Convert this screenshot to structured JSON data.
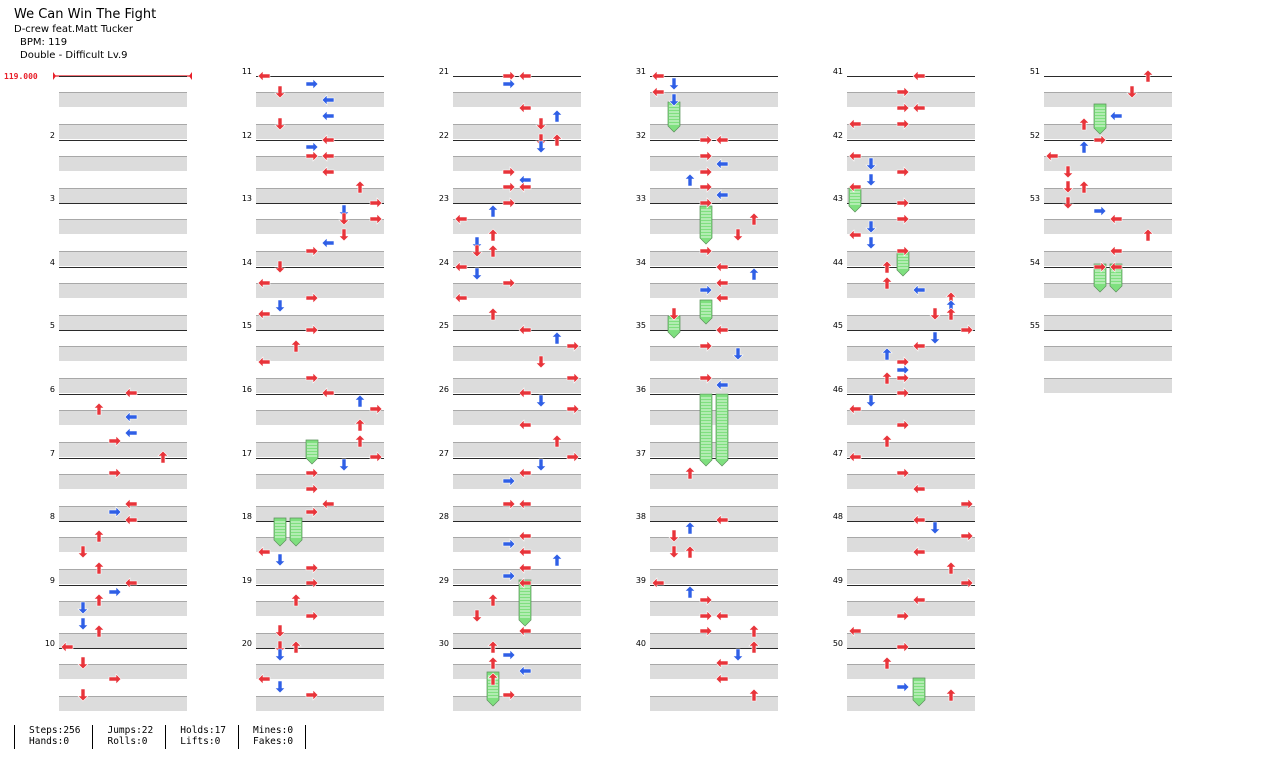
{
  "song": {
    "title": "We Can Win The Fight",
    "artist": "D-crew feat.Matt Tucker",
    "bpm_label": "BPM: 119",
    "difficulty": "Double - Difficult  Lv.9"
  },
  "bpm_marker": "119.000",
  "columns": [
    {
      "measures": [
        "",
        "2",
        "3",
        "4",
        "5",
        "6",
        "7",
        "8",
        "9",
        "10"
      ]
    },
    {
      "measures": [
        "11",
        "12",
        "13",
        "14",
        "15",
        "16",
        "17",
        "18",
        "19",
        "20"
      ]
    },
    {
      "measures": [
        "21",
        "22",
        "23",
        "24",
        "25",
        "26",
        "27",
        "28",
        "29",
        "30"
      ]
    },
    {
      "measures": [
        "31",
        "32",
        "33",
        "34",
        "35",
        "36",
        "37",
        "38",
        "39",
        "40"
      ]
    },
    {
      "measures": [
        "41",
        "42",
        "43",
        "44",
        "45",
        "46",
        "47",
        "48",
        "49",
        "50"
      ]
    },
    {
      "measures": [
        "51",
        "52",
        "53",
        "54",
        "55"
      ]
    }
  ],
  "stats": [
    {
      "a": "Steps:256",
      "b": "Hands:0"
    },
    {
      "a": "Jumps:22",
      "b": "Rolls:0"
    },
    {
      "a": "Holds:17",
      "b": "Lifts:0"
    },
    {
      "a": "Mines:0",
      "b": "Fakes:0"
    }
  ],
  "colors": {
    "red_note": "#e8343a",
    "blue_note": "#2f5fe6",
    "hold_green": "#7fe07f",
    "bpm_red": "#e8202a",
    "stripe": "#dcdcdc"
  }
}
